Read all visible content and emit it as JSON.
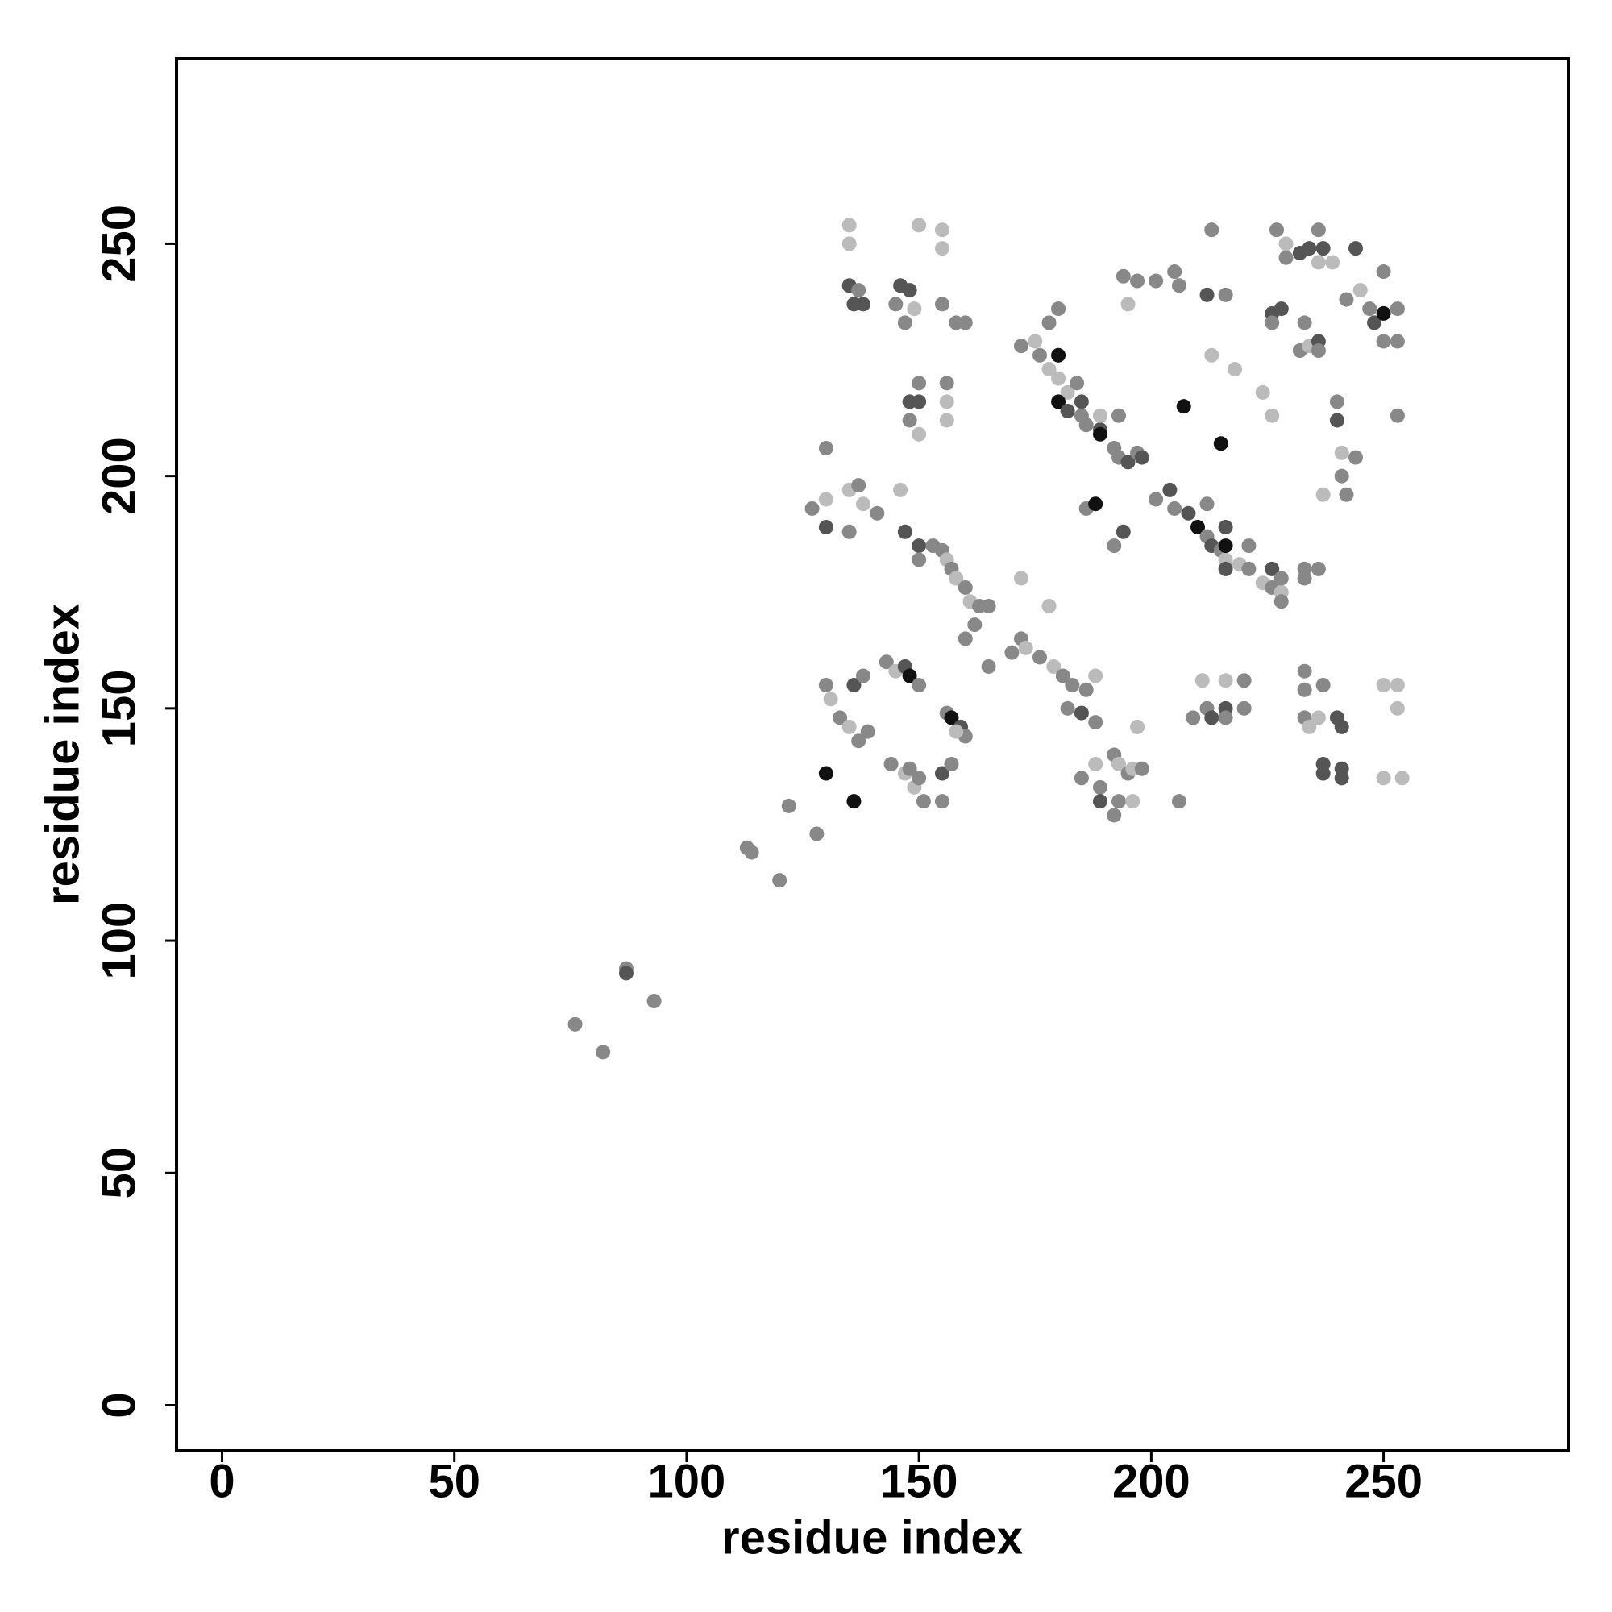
{
  "chart_data": {
    "type": "scatter",
    "x_label": "residue index",
    "y_label": "residue index",
    "xlim": [
      -9.8,
      289.8
    ],
    "ylim": [
      -9.8,
      289.8
    ],
    "xticks": [
      0,
      50,
      100,
      150,
      200,
      250
    ],
    "yticks": [
      0,
      50,
      100,
      150,
      200,
      250
    ],
    "x": [
      76,
      82,
      87,
      87,
      93,
      113,
      114,
      120,
      122,
      128,
      130,
      136,
      130,
      130,
      131,
      133,
      135,
      137,
      139,
      136,
      138,
      144,
      147,
      149,
      151,
      148,
      150,
      155,
      155,
      157,
      143,
      145,
      147,
      148,
      150,
      156,
      157,
      159,
      160,
      158,
      127,
      130,
      135,
      137,
      138,
      135,
      130,
      141,
      135,
      137,
      138,
      136,
      135,
      135,
      146,
      148,
      145,
      147,
      149,
      150,
      155,
      155,
      155,
      158,
      160,
      150,
      148,
      150,
      148,
      150,
      156,
      156,
      156,
      146,
      147,
      150,
      150,
      153,
      155,
      156,
      157,
      158,
      160,
      161,
      163,
      165,
      162,
      160,
      165,
      170,
      172,
      173,
      176,
      179,
      181,
      183,
      186,
      188,
      182,
      185,
      188,
      172,
      178,
      185,
      188,
      189,
      189,
      192,
      193,
      195,
      196,
      198,
      193,
      192,
      196,
      197,
      206,
      209,
      212,
      213,
      216,
      216,
      211,
      216,
      220,
      220,
      233,
      233,
      233,
      234,
      236,
      237,
      237,
      237,
      240,
      241,
      241,
      241,
      250,
      253,
      253,
      250,
      254,
      172,
      175,
      176,
      178,
      180,
      180,
      182,
      180,
      182,
      185,
      185,
      186,
      189,
      189,
      189,
      192,
      193,
      195,
      197,
      198,
      180,
      178,
      193,
      184,
      201,
      204,
      205,
      208,
      210,
      212,
      213,
      215,
      216,
      219,
      221,
      221,
      224,
      226,
      228,
      228,
      226,
      228,
      216,
      216,
      216,
      212,
      186,
      188,
      194,
      192,
      233,
      236,
      233,
      207,
      215,
      194,
      197,
      201,
      205,
      195,
      206,
      213,
      212,
      216,
      213,
      218,
      224,
      226,
      227,
      229,
      229,
      232,
      234,
      236,
      236,
      239,
      237,
      244,
      226,
      228,
      226,
      232,
      234,
      236,
      236,
      233,
      242,
      245,
      247,
      248,
      250,
      250,
      253,
      250,
      253,
      253,
      240,
      240,
      241,
      241,
      242,
      244,
      237
    ],
    "y": [
      82,
      76,
      94,
      93,
      87,
      120,
      119,
      113,
      129,
      123,
      136,
      130,
      206,
      155,
      152,
      148,
      146,
      143,
      145,
      155,
      157,
      138,
      136,
      133,
      130,
      137,
      135,
      130,
      136,
      138,
      160,
      158,
      159,
      157,
      155,
      149,
      148,
      146,
      144,
      145,
      193,
      195,
      197,
      198,
      194,
      188,
      189,
      192,
      241,
      240,
      237,
      237,
      254,
      250,
      241,
      240,
      237,
      233,
      236,
      254,
      253,
      249,
      237,
      233,
      233,
      220,
      216,
      216,
      212,
      209,
      220,
      216,
      212,
      197,
      188,
      185,
      182,
      185,
      184,
      182,
      180,
      178,
      176,
      173,
      172,
      172,
      168,
      165,
      159,
      162,
      165,
      163,
      161,
      159,
      157,
      155,
      154,
      157,
      150,
      149,
      147,
      178,
      172,
      135,
      138,
      133,
      130,
      140,
      138,
      136,
      137,
      137,
      130,
      127,
      130,
      146,
      130,
      148,
      150,
      148,
      150,
      148,
      156,
      156,
      156,
      150,
      158,
      154,
      148,
      146,
      148,
      155,
      138,
      136,
      148,
      146,
      137,
      135,
      155,
      155,
      150,
      135,
      135,
      228,
      229,
      226,
      223,
      226,
      221,
      218,
      216,
      214,
      216,
      213,
      211,
      210,
      213,
      209,
      206,
      204,
      203,
      205,
      204,
      236,
      233,
      213,
      220,
      195,
      197,
      193,
      192,
      189,
      187,
      185,
      184,
      182,
      181,
      185,
      180,
      177,
      176,
      175,
      173,
      180,
      178,
      189,
      185,
      180,
      194,
      193,
      194,
      188,
      185,
      180,
      180,
      178,
      215,
      207,
      243,
      242,
      242,
      244,
      237,
      241,
      253,
      239,
      239,
      226,
      223,
      218,
      213,
      253,
      250,
      247,
      248,
      249,
      253,
      246,
      246,
      249,
      249,
      235,
      236,
      233,
      227,
      228,
      229,
      227,
      233,
      238,
      240,
      236,
      233,
      235,
      244,
      236,
      229,
      229,
      213,
      216,
      212,
      205,
      200,
      196,
      204,
      196
    ],
    "colors": [
      "#888",
      "#888",
      "#888",
      "#555",
      "#888",
      "#888",
      "#888",
      "#888",
      "#888",
      "#888",
      "#111",
      "#111",
      "#888",
      "#888",
      "#bbb",
      "#888",
      "#bbb",
      "#888",
      "#888",
      "#555",
      "#888",
      "#888",
      "#bbb",
      "#bbb",
      "#888",
      "#888",
      "#888",
      "#888",
      "#555",
      "#888",
      "#888",
      "#bbb",
      "#555",
      "#111",
      "#888",
      "#888",
      "#111",
      "#555",
      "#888",
      "#bbb",
      "#888",
      "#bbb",
      "#bbb",
      "#888",
      "#bbb",
      "#888",
      "#555",
      "#888",
      "#555",
      "#888",
      "#555",
      "#555",
      "#bbb",
      "#bbb",
      "#555",
      "#555",
      "#888",
      "#888",
      "#bbb",
      "#bbb",
      "#bbb",
      "#bbb",
      "#888",
      "#888",
      "#888",
      "#888",
      "#555",
      "#555",
      "#888",
      "#bbb",
      "#888",
      "#bbb",
      "#bbb",
      "#bbb",
      "#555",
      "#555",
      "#888",
      "#888",
      "#888",
      "#bbb",
      "#888",
      "#bbb",
      "#888",
      "#bbb",
      "#888",
      "#888",
      "#888",
      "#888",
      "#888",
      "#888",
      "#888",
      "#bbb",
      "#888",
      "#bbb",
      "#888",
      "#888",
      "#888",
      "#bbb",
      "#888",
      "#555",
      "#888",
      "#bbb",
      "#bbb",
      "#888",
      "#bbb",
      "#888",
      "#555",
      "#888",
      "#bbb",
      "#888",
      "#bbb",
      "#888",
      "#888",
      "#888",
      "#bbb",
      "#bbb",
      "#888",
      "#888",
      "#888",
      "#555",
      "#555",
      "#888",
      "#bbb",
      "#bbb",
      "#888",
      "#888",
      "#888",
      "#888",
      "#888",
      "#bbb",
      "#bbb",
      "#888",
      "#555",
      "#555",
      "#555",
      "#555",
      "#555",
      "#555",
      "#bbb",
      "#bbb",
      "#bbb",
      "#bbb",
      "#bbb",
      "#888",
      "#bbb",
      "#888",
      "#bbb",
      "#111",
      "#bbb",
      "#bbb",
      "#111",
      "#555",
      "#555",
      "#888",
      "#888",
      "#555",
      "#bbb",
      "#111",
      "#888",
      "#888",
      "#555",
      "#888",
      "#555",
      "#888",
      "#888",
      "#888",
      "#888",
      "#888",
      "#555",
      "#888",
      "#555",
      "#111",
      "#888",
      "#555",
      "#888",
      "#bbb",
      "#bbb",
      "#888",
      "#888",
      "#bbb",
      "#888",
      "#bbb",
      "#888",
      "#555",
      "#888",
      "#555",
      "#111",
      "#555",
      "#888",
      "#888",
      "#111",
      "#555",
      "#888",
      "#888",
      "#888",
      "#888",
      "#111",
      "#111",
      "#888",
      "#888",
      "#888",
      "#888",
      "#bbb",
      "#888",
      "#888",
      "#555",
      "#888",
      "#bbb",
      "#bbb",
      "#bbb",
      "#bbb",
      "#888",
      "#bbb",
      "#888",
      "#555",
      "#555",
      "#888",
      "#bbb",
      "#bbb",
      "#555",
      "#555",
      "#555",
      "#555",
      "#888",
      "#888",
      "#bbb",
      "#555",
      "#888",
      "#888",
      "#888",
      "#bbb",
      "#888",
      "#555",
      "#111",
      "#888",
      "#888",
      "#888",
      "#888",
      "#888",
      "#888",
      "#555",
      "#bbb",
      "#888",
      "#888",
      "#888",
      "#bbb"
    ]
  }
}
